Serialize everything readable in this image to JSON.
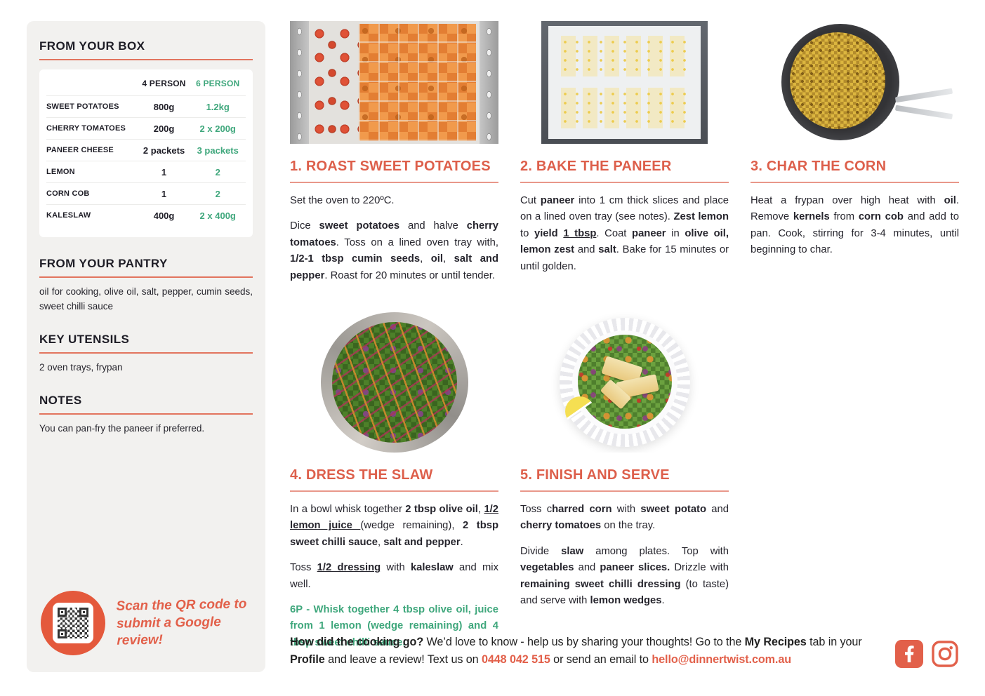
{
  "colors": {
    "accent": "#DD5F4B",
    "green": "#3FA77C",
    "dark": "#1E1D26",
    "sidebar_bg": "#F2F1EF"
  },
  "sidebar": {
    "box": {
      "title": "FROM YOUR BOX",
      "col_headers": [
        "4 PERSON",
        "6 PERSON"
      ],
      "rows": [
        {
          "label": "SWEET POTATOES",
          "p4": "800g",
          "p6": "1.2kg"
        },
        {
          "label": "CHERRY TOMATOES",
          "p4": "200g",
          "p6": "2 x 200g"
        },
        {
          "label": "PANEER CHEESE",
          "p4": "2 packets",
          "p6": "3 packets"
        },
        {
          "label": "LEMON",
          "p4": "1",
          "p6": "2"
        },
        {
          "label": "CORN COB",
          "p4": "1",
          "p6": "2"
        },
        {
          "label": "KALESLAW",
          "p4": "400g",
          "p6": "2 x 400g"
        }
      ]
    },
    "pantry": {
      "title": "FROM YOUR PANTRY",
      "text": "oil for cooking, olive oil, salt, pepper, cumin seeds, sweet chilli sauce"
    },
    "utensils": {
      "title": "KEY UTENSILS",
      "text": "2 oven trays, frypan"
    },
    "notes": {
      "title": "NOTES",
      "text": "You can pan-fry the paneer if preferred."
    },
    "review": {
      "text": "Scan the QR code to submit a Google review!",
      "qr_icon": "qr-code"
    }
  },
  "steps": [
    {
      "title": "1. ROAST SWEET POTATOES",
      "photo": "tray of diced sweet potatoes and cherry tomatoes",
      "paragraphs": [
        [
          {
            "t": "Set the oven to 220ºC."
          }
        ],
        [
          {
            "t": "Dice "
          },
          {
            "t": "sweet potatoes",
            "b": 1
          },
          {
            "t": " and halve "
          },
          {
            "t": "cherry tomatoes",
            "b": 1
          },
          {
            "t": ". Toss on a lined oven tray with, "
          },
          {
            "t": "1/2-1 tbsp cumin seeds",
            "b": 1
          },
          {
            "t": ", "
          },
          {
            "t": "oil",
            "b": 1
          },
          {
            "t": ", "
          },
          {
            "t": "salt and pepper",
            "b": 1
          },
          {
            "t": ". Roast for 20 minutes or until tender."
          }
        ]
      ]
    },
    {
      "title": "2. BAKE THE PANEER",
      "photo": "paneer slices on lined oven tray",
      "paragraphs": [
        [
          {
            "t": "Cut "
          },
          {
            "t": "paneer",
            "b": 1
          },
          {
            "t": " into 1 cm thick slices and place on a lined oven tray (see notes). "
          },
          {
            "t": "Zest lemon",
            "b": 1
          },
          {
            "t": " to "
          },
          {
            "t": "yield",
            "b": 1
          },
          {
            "t": " "
          },
          {
            "t": "1 tbsp",
            "b": 1,
            "u": 1
          },
          {
            "t": ". Coat "
          },
          {
            "t": "paneer",
            "b": 1
          },
          {
            "t": " in "
          },
          {
            "t": "olive oil, lemon zest",
            "b": 1
          },
          {
            "t": " and "
          },
          {
            "t": "salt",
            "b": 1
          },
          {
            "t": ". Bake for 15 minutes or until golden."
          }
        ]
      ]
    },
    {
      "title": "3. CHAR THE CORN",
      "photo": "charred corn kernels in frypan",
      "paragraphs": [
        [
          {
            "t": "Heat a frypan over high heat with "
          },
          {
            "t": "oil",
            "b": 1
          },
          {
            "t": ". Remove "
          },
          {
            "t": "kernels",
            "b": 1
          },
          {
            "t": " from "
          },
          {
            "t": "corn cob",
            "b": 1
          },
          {
            "t": " and add to pan. Cook, stirring for 3-4 minutes, until beginning to char."
          }
        ]
      ]
    },
    {
      "title": "4. DRESS THE SLAW",
      "photo": "kaleslaw in metal bowl",
      "paragraphs": [
        [
          {
            "t": "In a bowl whisk together "
          },
          {
            "t": "2 tbsp olive oil",
            "b": 1
          },
          {
            "t": ", "
          },
          {
            "t": "1/2 lemon juice ",
            "b": 1,
            "u": 1
          },
          {
            "t": "(wedge remaining), "
          },
          {
            "t": "2 tbsp sweet chilli sauce",
            "b": 1
          },
          {
            "t": ", "
          },
          {
            "t": "salt and pepper",
            "b": 1
          },
          {
            "t": "."
          }
        ],
        [
          {
            "t": "Toss "
          },
          {
            "t": "1/2 dressing",
            "b": 1,
            "u": 1
          },
          {
            "t": " with "
          },
          {
            "t": "kaleslaw",
            "b": 1
          },
          {
            "t": " and mix well."
          }
        ],
        [
          {
            "t": "6P - Whisk together 4 tbsp olive oil, juice from 1 lemon (wedge remaining) and 4 tbsp sweet chilli sauce.",
            "b": 1,
            "c": "green"
          }
        ]
      ]
    },
    {
      "title": "5. FINISH AND SERVE",
      "photo": "plated slaw with paneer and lemon wedge",
      "paragraphs": [
        [
          {
            "t": "Toss c"
          },
          {
            "t": "harred corn",
            "b": 1
          },
          {
            "t": " with "
          },
          {
            "t": "sweet potato",
            "b": 1
          },
          {
            "t": " and "
          },
          {
            "t": "cherry tomatoes",
            "b": 1
          },
          {
            "t": " on the tray."
          }
        ],
        [
          {
            "t": "Divide "
          },
          {
            "t": "slaw",
            "b": 1
          },
          {
            "t": " among plates. Top with "
          },
          {
            "t": "vegetables",
            "b": 1
          },
          {
            "t": " and "
          },
          {
            "t": "paneer slices.",
            "b": 1
          },
          {
            "t": " Drizzle with "
          },
          {
            "t": "remaining sweet chilli dressing",
            "b": 1
          },
          {
            "t": " (to taste) and serve with "
          },
          {
            "t": "lemon wedges",
            "b": 1
          },
          {
            "t": "."
          }
        ]
      ]
    }
  ],
  "footer": {
    "runs": [
      {
        "t": "How did the cooking go?",
        "b": 1
      },
      {
        "t": " We’d love to know - help us by sharing your thoughts! Go to the "
      },
      {
        "t": "My Recipes",
        "b": 1
      },
      {
        "t": " tab in your "
      },
      {
        "t": "Profile",
        "b": 1
      },
      {
        "t": " and leave a review! Text us on "
      },
      {
        "t": "0448 042 515",
        "b": 1,
        "c": "accent"
      },
      {
        "t": " or send an email to "
      },
      {
        "t": "hello@dinnertwist.com.au",
        "b": 1,
        "c": "accent"
      }
    ],
    "social_icons": [
      "facebook-icon",
      "instagram-icon"
    ]
  }
}
